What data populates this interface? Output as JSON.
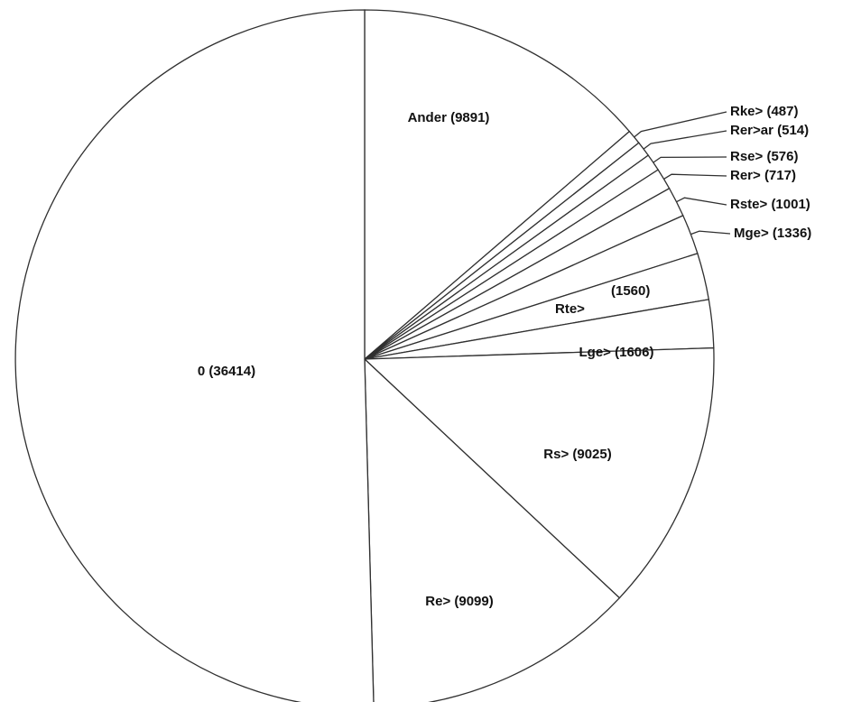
{
  "chart_data": {
    "type": "pie",
    "title": "",
    "slices": [
      {
        "name": "Ander",
        "value": 9891,
        "label": "Ander (9891)"
      },
      {
        "name": "Rke>",
        "value": 487,
        "label": "Rke> (487)"
      },
      {
        "name": "Rer>ar",
        "value": 514,
        "label": "Rer>ar (514)"
      },
      {
        "name": "Rse>",
        "value": 576,
        "label": "Rse> (576)"
      },
      {
        "name": "Rer>",
        "value": 717,
        "label": "Rer> (717)"
      },
      {
        "name": "Rste>",
        "value": 1001,
        "label": "Rste> (1001)"
      },
      {
        "name": "Mge>",
        "value": 1336,
        "label": "Mge> (1336)"
      },
      {
        "name": "Rte>",
        "value": 1560,
        "label": "Rte>",
        "value_label": "(1560)"
      },
      {
        "name": "Lge>",
        "value": 1606,
        "label": "Lge> (1606)"
      },
      {
        "name": "Rs>",
        "value": 9025,
        "label": "Rs> (9025)"
      },
      {
        "name": "Re>",
        "value": 9099,
        "label": "Re> (9099)"
      },
      {
        "name": "0",
        "value": 36414,
        "label": "0 (36414)"
      }
    ],
    "start_angle": "top",
    "direction": "clockwise",
    "fill_color": "#ffffff",
    "stroke_color": "#303030"
  }
}
